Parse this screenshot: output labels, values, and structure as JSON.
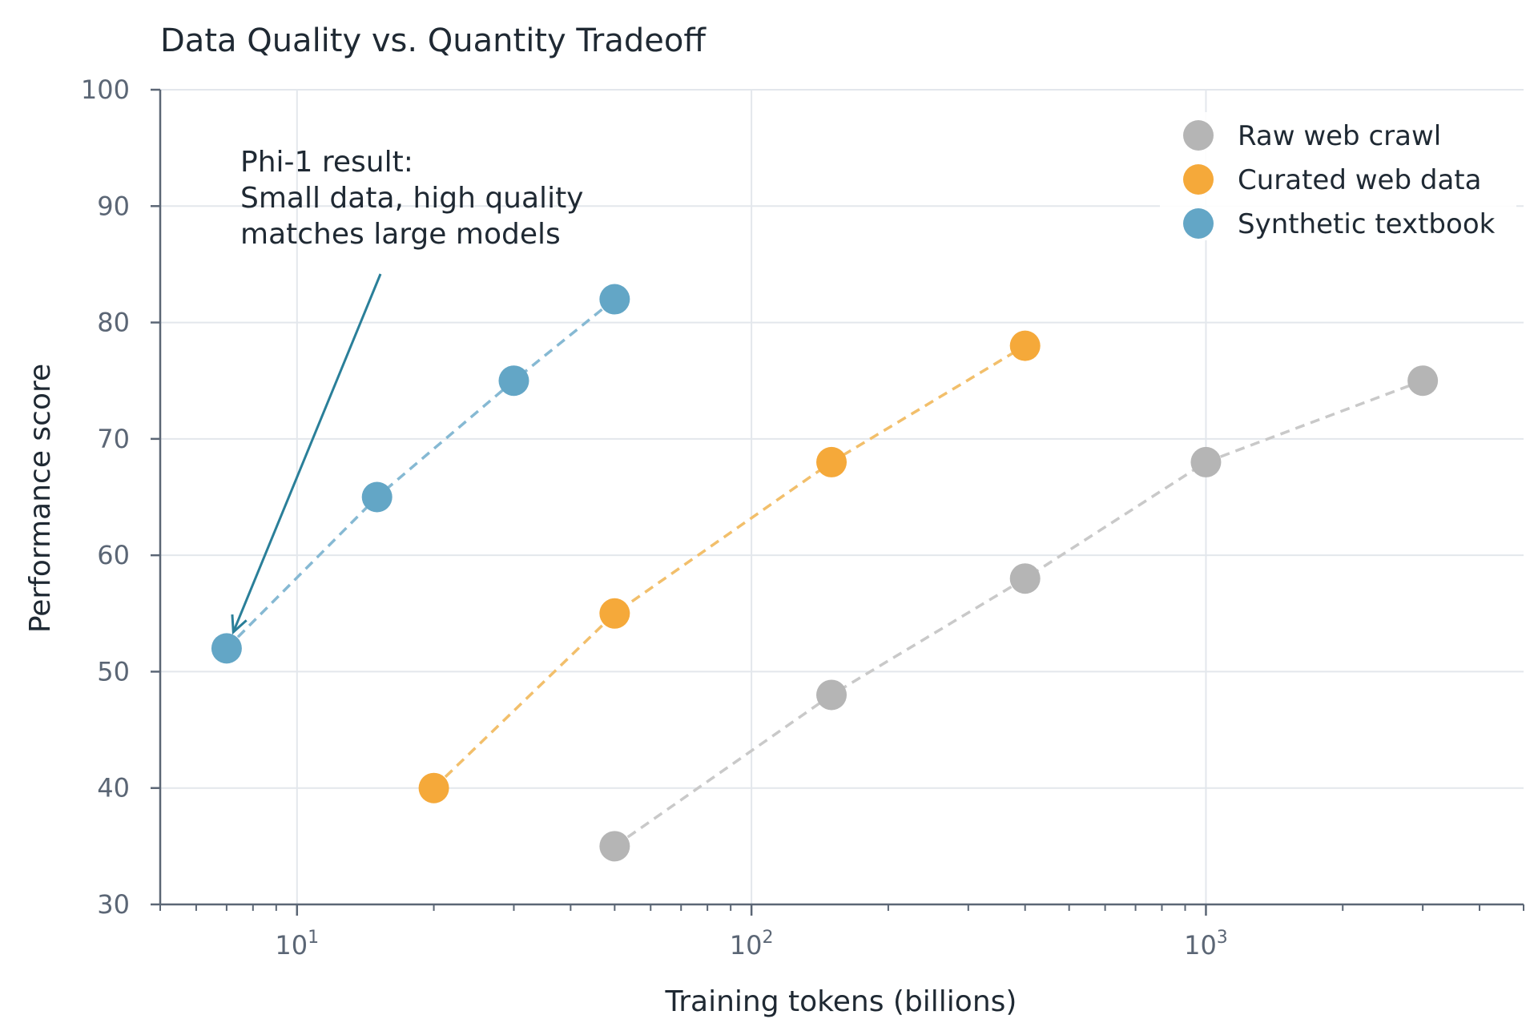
{
  "chart_data": {
    "type": "scatter",
    "title": "Data Quality vs. Quantity Tradeoff",
    "xlabel": "Training tokens (billions)",
    "ylabel": "Performance score",
    "xscale": "log",
    "xlim": [
      5,
      5000
    ],
    "ylim": [
      30,
      100
    ],
    "yticks": [
      30,
      40,
      50,
      60,
      70,
      80,
      90,
      100
    ],
    "xticks": [
      {
        "value": 10,
        "base": "10",
        "exp": "1"
      },
      {
        "value": 100,
        "base": "10",
        "exp": "2"
      },
      {
        "value": 1000,
        "base": "10",
        "exp": "3"
      }
    ],
    "grid": true,
    "legend_position": "top-right",
    "series": [
      {
        "name": "Raw web crawl",
        "color": "#b5b5b5",
        "line_color": "#c9c9c9",
        "x": [
          50,
          150,
          400,
          1000,
          3000
        ],
        "y": [
          35,
          48,
          58,
          68,
          75
        ]
      },
      {
        "name": "Curated web data",
        "color": "#f5a93a",
        "line_color": "#f2bf6b",
        "x": [
          20,
          50,
          150,
          400
        ],
        "y": [
          40,
          55,
          68,
          78
        ]
      },
      {
        "name": "Synthetic textbook",
        "color": "#63a6c6",
        "line_color": "#86b9d3",
        "x": [
          7,
          15,
          30,
          50
        ],
        "y": [
          52,
          65,
          75,
          82
        ]
      }
    ],
    "annotation": {
      "lines": [
        "Phi-1 result:",
        "Small data, high quality",
        "matches large models"
      ],
      "target_x": 7,
      "target_y": 52,
      "arrow_color": "#2a7f99"
    }
  }
}
